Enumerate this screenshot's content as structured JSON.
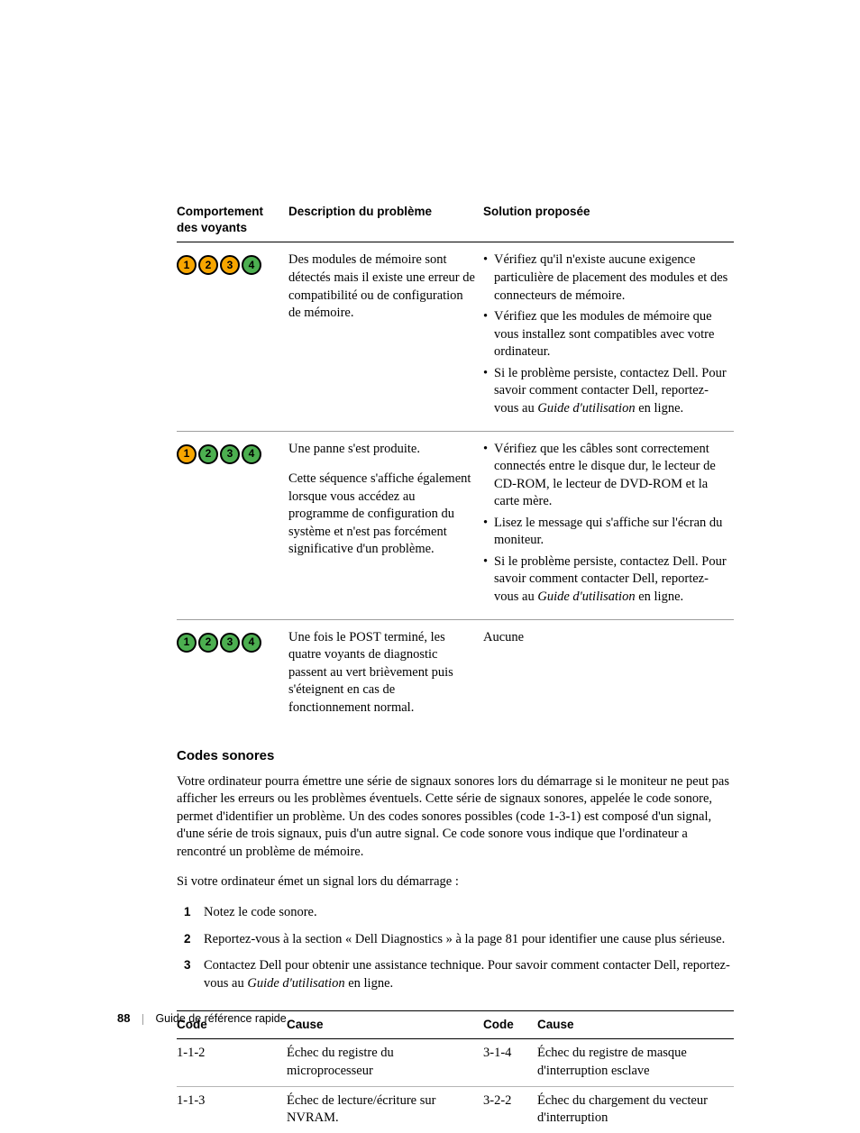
{
  "diag_table": {
    "headers": [
      "Comportement des voyants",
      "Description du problème",
      "Solution proposée"
    ],
    "led_colors": {
      "amber": "#f7a600",
      "green": "#4caf50"
    },
    "rows": [
      {
        "leds": [
          {
            "n": "1",
            "fill": "#f7a600"
          },
          {
            "n": "2",
            "fill": "#f7a600"
          },
          {
            "n": "3",
            "fill": "#f7a600"
          },
          {
            "n": "4",
            "fill": "#4caf50"
          }
        ],
        "desc": "Des modules de mémoire sont détectés mais il existe une erreur de compatibilité ou de configuration de mémoire.",
        "solution": [
          "Vérifiez qu'il n'existe aucune exigence particulière de placement des modules et des connecteurs de mémoire.",
          "Vérifiez que les modules de mémoire que vous installez sont compatibles avec votre ordinateur.",
          "Si le problème persiste, contactez Dell. Pour savoir comment contacter Dell, reportez-vous au <i>Guide d'utilisation</i> en ligne."
        ]
      },
      {
        "leds": [
          {
            "n": "1",
            "fill": "#f7a600"
          },
          {
            "n": "2",
            "fill": "#4caf50"
          },
          {
            "n": "3",
            "fill": "#4caf50"
          },
          {
            "n": "4",
            "fill": "#4caf50"
          }
        ],
        "desc": "Une panne s'est produite.",
        "desc2": "Cette séquence s'affiche également lorsque vous accédez au programme de configuration du système et n'est pas forcément significative d'un problème.",
        "solution": [
          "Vérifiez que les câbles sont correctement connectés entre le disque dur, le lecteur de CD-ROM, le lecteur de DVD-ROM et la carte mère.",
          "Lisez le message qui s'affiche sur l'écran du moniteur.",
          "Si le problème persiste, contactez Dell. Pour savoir comment contacter Dell, reportez-vous au <i>Guide d'utilisation</i> en ligne."
        ]
      },
      {
        "leds": [
          {
            "n": "1",
            "fill": "#4caf50"
          },
          {
            "n": "2",
            "fill": "#4caf50"
          },
          {
            "n": "3",
            "fill": "#4caf50"
          },
          {
            "n": "4",
            "fill": "#4caf50"
          }
        ],
        "desc": "Une fois le POST terminé, les quatre voyants de diagnostic passent au vert brièvement puis s'éteignent en cas de fonctionnement normal.",
        "solution_plain": "Aucune"
      }
    ]
  },
  "codes_heading": "Codes sonores",
  "codes_para1": "Votre ordinateur pourra émettre une série de signaux sonores lors du démarrage si le moniteur ne peut pas afficher les erreurs ou les problèmes éventuels. Cette série de signaux sonores, appelée le code sonore, permet d'identifier un problème. Un des codes sonores possibles (code 1-3-1) est composé d'un signal, d'une série de trois signaux, puis d'un autre signal. Ce code sonore vous indique que l'ordinateur a rencontré un problème de mémoire.",
  "codes_para2": "Si votre ordinateur émet un signal lors du démarrage :",
  "steps": [
    "Notez le code sonore.",
    "Reportez-vous à la section « Dell Diagnostics » à la page 81 pour identifier une cause plus sérieuse.",
    "Contactez Dell pour obtenir une assistance technique. Pour savoir comment contacter Dell, reportez-vous au <i>Guide d'utilisation</i> en ligne."
  ],
  "beep_table": {
    "headers": [
      "Code",
      "Cause",
      "Code",
      "Cause"
    ],
    "rows": [
      [
        "1-1-2",
        "Échec du registre du microprocesseur",
        "3-1-4",
        "Échec du registre de masque d'interruption esclave"
      ],
      [
        "1-1-3",
        "Échec de lecture/écriture sur NVRAM.",
        "3-2-2",
        "Échec du chargement du vecteur d'interruption"
      ]
    ]
  },
  "footer": {
    "page": "88",
    "title": "Guide de référence rapide"
  },
  "typography": {
    "body_font": "Georgia/serif",
    "heading_font": "Arial/sans-serif",
    "body_size_pt": 11,
    "heading_size_pt": 11.5
  },
  "colors": {
    "text": "#000000",
    "rule_strong": "#000000",
    "rule_light": "#9e9e9e",
    "background": "#ffffff"
  }
}
